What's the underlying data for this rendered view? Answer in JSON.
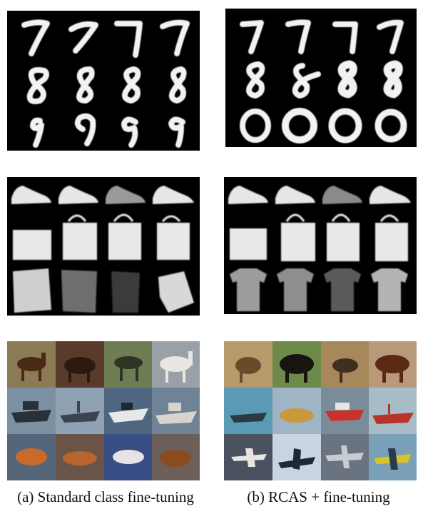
{
  "captions": {
    "left": "(a) Standard class fine-tuning",
    "right": "(b) RCAS + fine-tuning"
  },
  "colors": {
    "background": "#ffffff",
    "panel_black": "#000000",
    "digit_white": "#f2f2f2",
    "item_white": "#e6e6e6"
  },
  "figure": {
    "left_column": {
      "mnist_rows": [
        "7",
        "8",
        "9"
      ],
      "fashion_rows": [
        "sneaker",
        "bag",
        "blurred-garment"
      ],
      "cifar_rows": [
        "horse",
        "ship",
        "blurred-artifact"
      ]
    },
    "right_column": {
      "mnist_rows": [
        "7",
        "8",
        "0"
      ],
      "fashion_rows": [
        "sneaker",
        "bag",
        "t-shirt"
      ],
      "cifar_rows": [
        "animal",
        "ship",
        "airplane"
      ]
    }
  }
}
